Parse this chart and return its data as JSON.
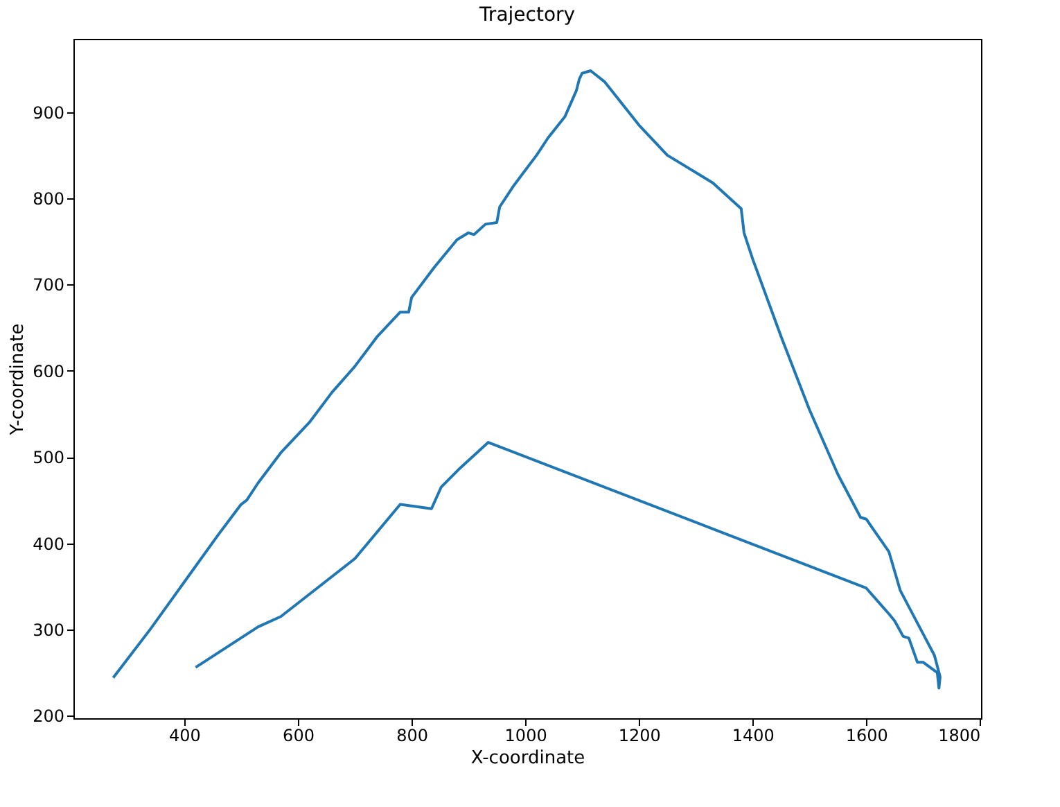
{
  "chart_data": {
    "type": "line",
    "title": "Trajectory",
    "xlabel": "X-coordinate",
    "ylabel": "Y-coordinate",
    "series": [
      {
        "color": "#1f77b4",
        "x": [
          275,
          340,
          400,
          460,
          500,
          510,
          530,
          570,
          620,
          660,
          700,
          740,
          780,
          795,
          800,
          840,
          880,
          900,
          910,
          930,
          950,
          955,
          980,
          1020,
          1040,
          1070,
          1090,
          1095,
          1100,
          1115,
          1140,
          1200,
          1250,
          1330,
          1380,
          1385,
          1400,
          1450,
          1500,
          1550,
          1590,
          1600,
          1640,
          1660,
          1700,
          1720,
          1730,
          1728,
          1725,
          1700,
          1690,
          1675,
          1665,
          1650,
          1640,
          1600,
          935,
          882,
          852,
          835,
          780,
          700,
          570,
          530,
          420
        ],
        "values": [
          244,
          300,
          355,
          410,
          445,
          450,
          470,
          505,
          540,
          575,
          605,
          640,
          668,
          668,
          685,
          720,
          752,
          760,
          758,
          770,
          772,
          790,
          815,
          850,
          870,
          895,
          925,
          938,
          945,
          948,
          935,
          885,
          850,
          818,
          788,
          760,
          730,
          640,
          555,
          480,
          430,
          428,
          390,
          345,
          295,
          270,
          245,
          232,
          250,
          262,
          262,
          290,
          292,
          310,
          318,
          348,
          517,
          485,
          465,
          440,
          445,
          382,
          315,
          303,
          256
        ]
      }
    ],
    "xlim": [
      205,
      1802
    ],
    "ylim": [
      197,
      985
    ],
    "xticks": [
      400,
      600,
      800,
      1000,
      1200,
      1400,
      1600,
      1800
    ],
    "yticks": [
      200,
      300,
      400,
      500,
      600,
      700,
      800,
      900
    ],
    "grid": false,
    "legend": false,
    "line_style": "solid",
    "marker": "none"
  }
}
